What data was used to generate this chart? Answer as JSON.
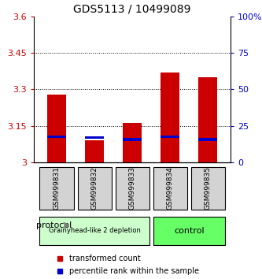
{
  "title": "GDS5113 / 10499089",
  "samples": [
    "GSM999831",
    "GSM999832",
    "GSM999833",
    "GSM999834",
    "GSM999835"
  ],
  "red_values": [
    3.28,
    3.09,
    3.16,
    3.37,
    3.35
  ],
  "blue_values": [
    3.098,
    3.095,
    3.088,
    3.098,
    3.088
  ],
  "bar_base": 3.0,
  "ylim": [
    3.0,
    3.6
  ],
  "yticks": [
    3.0,
    3.15,
    3.3,
    3.45,
    3.6
  ],
  "ytick_labels": [
    "3",
    "3.15",
    "3.3",
    "3.45",
    "3.6"
  ],
  "right_yticks": [
    0,
    25,
    50,
    75,
    100
  ],
  "right_ytick_labels": [
    "0",
    "25",
    "50",
    "75",
    "100%"
  ],
  "group1_samples": [
    0,
    1,
    2
  ],
  "group2_samples": [
    3,
    4
  ],
  "group1_label": "Grainyhead-like 2 depletion",
  "group2_label": "control",
  "group1_color": "#ccffcc",
  "group2_color": "#66ff66",
  "protocol_label": "protocol",
  "legend1_label": "transformed count",
  "legend2_label": "percentile rank within the sample",
  "red_color": "#cc0000",
  "blue_color": "#0000cc",
  "bar_width": 0.5,
  "left_tick_color": "#cc0000",
  "right_tick_color": "#0000cc",
  "bg_color": "#ffffff",
  "grid_color": "#000000",
  "sample_bg": "#d3d3d3"
}
